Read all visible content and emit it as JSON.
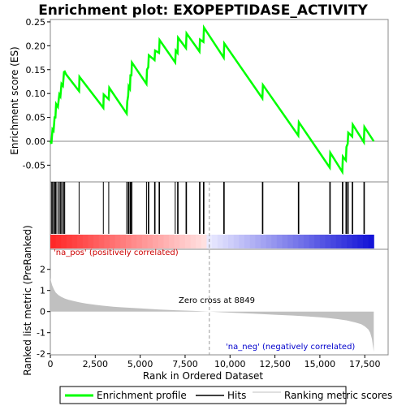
{
  "chart_data": {
    "type": "line",
    "title": "Enrichment plot: EXOPEPTIDASE_ACTIVITY",
    "top_panel": {
      "ylabel": "Enrichment score (ES)",
      "ylim": [
        -0.085,
        0.255
      ],
      "yticks": [
        -0.05,
        0.0,
        0.05,
        0.1,
        0.15,
        0.2,
        0.25
      ],
      "ytick_labels": [
        "-0.05",
        "0.00",
        "0.05",
        "0.10",
        "0.15",
        "0.20",
        "0.25"
      ],
      "line_color": "#00ff00",
      "es_curve": {
        "x": [
          0,
          60,
          120,
          180,
          240,
          280,
          320,
          420,
          500,
          560,
          620,
          700,
          760,
          800,
          880,
          1600,
          1620,
          2950,
          2970,
          3250,
          3280,
          4250,
          4280,
          4330,
          4360,
          4430,
          4460,
          4510,
          4540,
          5350,
          5380,
          5450,
          5480,
          5800,
          5830,
          6050,
          6080,
          6950,
          6980,
          7080,
          7110,
          7550,
          7580,
          8300,
          8330,
          8520,
          8550,
          9650,
          9680,
          11800,
          11830,
          13800,
          13830,
          15550,
          15580,
          16250,
          16280,
          16450,
          16480,
          16550,
          16580,
          16800,
          16830,
          17450,
          17480,
          18000
        ],
        "y": [
          0.0,
          -0.005,
          0.025,
          0.022,
          0.052,
          0.048,
          0.078,
          0.072,
          0.098,
          0.094,
          0.12,
          0.116,
          0.145,
          0.146,
          0.14,
          0.105,
          0.135,
          0.07,
          0.098,
          0.088,
          0.112,
          0.058,
          0.083,
          0.095,
          0.115,
          0.11,
          0.14,
          0.136,
          0.165,
          0.12,
          0.15,
          0.155,
          0.18,
          0.17,
          0.19,
          0.185,
          0.212,
          0.165,
          0.19,
          0.185,
          0.217,
          0.195,
          0.226,
          0.188,
          0.213,
          0.208,
          0.238,
          0.175,
          0.205,
          0.09,
          0.118,
          0.012,
          0.04,
          -0.055,
          -0.024,
          -0.064,
          -0.032,
          -0.04,
          -0.012,
          -0.005,
          0.018,
          0.01,
          0.035,
          -0.002,
          0.03,
          0.0
        ]
      }
    },
    "hits": [
      60,
      120,
      180,
      240,
      280,
      320,
      420,
      500,
      560,
      620,
      700,
      760,
      800,
      1600,
      2950,
      3250,
      4250,
      4330,
      4360,
      4430,
      4460,
      4510,
      4540,
      5350,
      5450,
      5480,
      5800,
      5830,
      6050,
      6080,
      6950,
      7080,
      7110,
      7550,
      7580,
      8300,
      8330,
      8520,
      8550,
      9650,
      9680,
      11800,
      11830,
      13800,
      13830,
      15550,
      15580,
      16250,
      16280,
      16450,
      16480,
      16550,
      16580,
      16800,
      16830,
      17450,
      17480
    ],
    "bottom_panel": {
      "ylabel": "Ranked list metric (PreRanked)",
      "xlabel": "Rank in Ordered Dataset",
      "xlim": [
        0,
        18800
      ],
      "xticks": [
        0,
        2500,
        5000,
        7500,
        10000,
        12500,
        15000,
        17500
      ],
      "xtick_labels": [
        "0",
        "2,500",
        "5,000",
        "7,500",
        "10,000",
        "12,500",
        "15,000",
        "17,500"
      ],
      "ylim": [
        -2.05,
        2.95
      ],
      "yticks": [
        -2,
        -1,
        0,
        1,
        2
      ],
      "ytick_labels": [
        "-2",
        "-1",
        "0",
        "1",
        "2"
      ],
      "metric_curve": {
        "x": [
          0,
          50,
          100,
          200,
          300,
          450,
          600,
          800,
          1000,
          1300,
          1600,
          2000,
          2500,
          3000,
          3500,
          4000,
          5000,
          6000,
          7000,
          8000,
          8849,
          9500,
          10500,
          11500,
          12500,
          13500,
          14500,
          15000,
          15500,
          16000,
          16500,
          17000,
          17300,
          17500,
          17700,
          17800,
          17900,
          17950,
          18000
        ],
        "y": [
          1.6,
          1.4,
          1.25,
          1.05,
          0.9,
          0.78,
          0.7,
          0.62,
          0.56,
          0.5,
          0.44,
          0.38,
          0.32,
          0.27,
          0.23,
          0.2,
          0.15,
          0.1,
          0.06,
          0.03,
          0.0,
          -0.03,
          -0.07,
          -0.11,
          -0.15,
          -0.19,
          -0.24,
          -0.27,
          -0.31,
          -0.36,
          -0.42,
          -0.52,
          -0.6,
          -0.7,
          -0.85,
          -1.0,
          -1.3,
          -1.6,
          -1.9
        ]
      },
      "zero_cross_rank": 8849,
      "annotations": {
        "pos_label": "'na_pos' (positively correlated)",
        "zero_label": "Zero cross at 8849",
        "neg_label": "'na_neg' (negatively correlated)"
      }
    },
    "legend": {
      "items": [
        {
          "label": "Enrichment profile",
          "color": "#00ff00"
        },
        {
          "label": "Hits",
          "color": "#000000"
        },
        {
          "label": "Ranking metric scores",
          "color": "#c0c0c0"
        }
      ]
    }
  }
}
